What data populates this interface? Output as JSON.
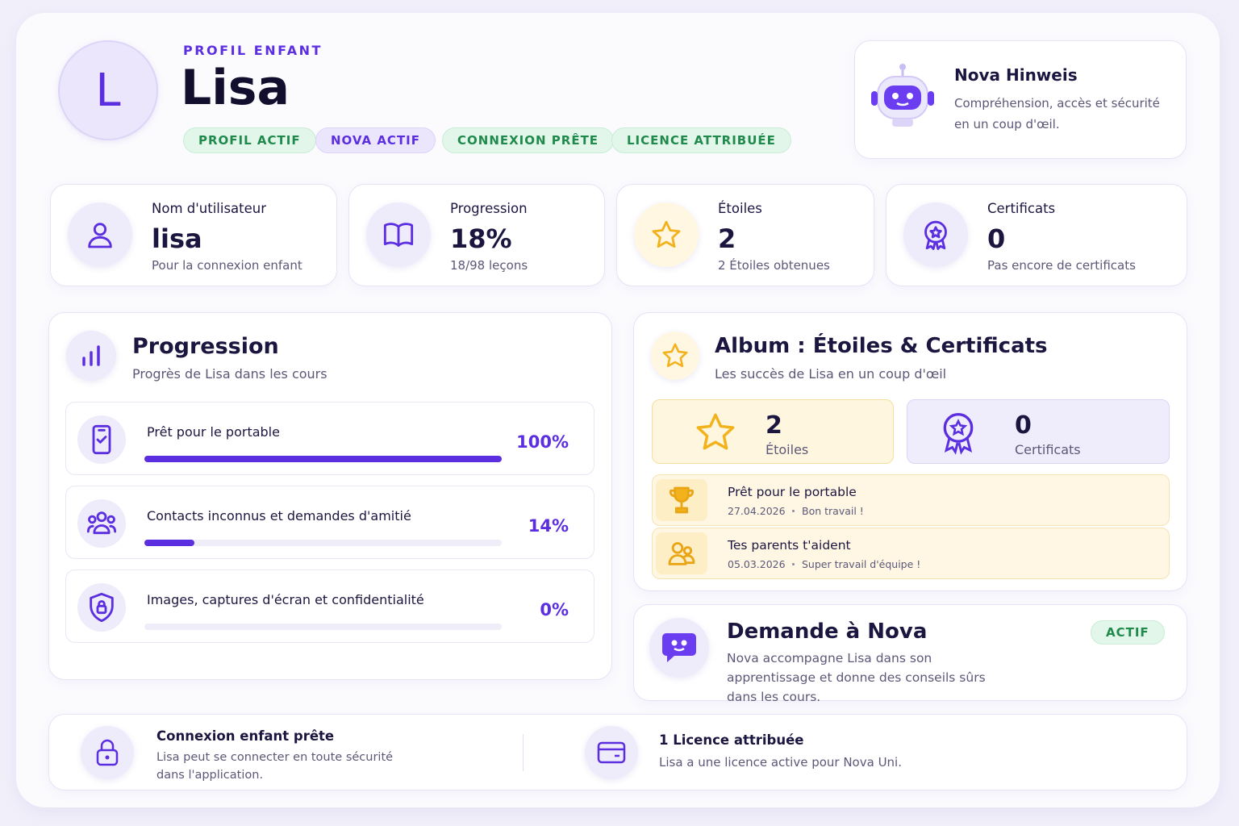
{
  "header": {
    "eyebrow": "PROFIL ENFANT",
    "avatar": "L",
    "name": "Lisa",
    "badges": [
      "PROFIL ACTIF",
      "NOVA ACTIF",
      "CONNEXION PRÊTE",
      "LICENCE ATTRIBUÉE"
    ]
  },
  "hint": {
    "title": "Nova Hinweis",
    "text": "Compréhension, accès et sécurité en un coup d'œil."
  },
  "stats": [
    {
      "label": "Nom d'utilisateur",
      "value": "lisa",
      "sub": "Pour la connexion enfant"
    },
    {
      "label": "Progression",
      "value": "18%",
      "sub": "18/98 leçons"
    },
    {
      "label": "Étoiles",
      "value": "2",
      "sub": "2 Étoiles obtenues"
    },
    {
      "label": "Certificats",
      "value": "0",
      "sub": "Pas encore de certificats"
    }
  ],
  "progress": {
    "title": "Progression",
    "subtitle": "Progrès de Lisa dans les cours",
    "courses": [
      {
        "name": "Prêt pour le portable",
        "value": 100,
        "value_label": "100%"
      },
      {
        "name": "Contacts inconnus et demandes d'amitié",
        "value": 14,
        "value_label": "14%"
      },
      {
        "name": "Images, captures d'écran et confidentialité",
        "value": 0,
        "value_label": "0%"
      }
    ]
  },
  "album": {
    "title": "Album : Étoiles & Certificats",
    "subtitle": "Les succès de Lisa en un coup d'œil",
    "stars": {
      "value": 2,
      "label": "Étoiles"
    },
    "certificates": {
      "value": 0,
      "label": "Certificats"
    },
    "achievements": [
      {
        "title": "Prêt pour le portable",
        "date": "27.04.2026",
        "note": "Bon travail !"
      },
      {
        "title": "Tes parents t'aident",
        "date": "05.03.2026",
        "note": "Super travail d'équipe !"
      }
    ]
  },
  "nova": {
    "title": "Demande à Nova",
    "status": "ACTIF",
    "text": "Nova accompagne Lisa dans son apprentissage et donne des conseils sûrs dans les cours."
  },
  "footer": [
    {
      "title": "Connexion enfant prête",
      "text": "Lisa peut se connecter en toute sécurité dans l'application."
    },
    {
      "title": "1 Licence attribuée",
      "text": "Lisa a une licence active pour Nova Uni."
    }
  ]
}
